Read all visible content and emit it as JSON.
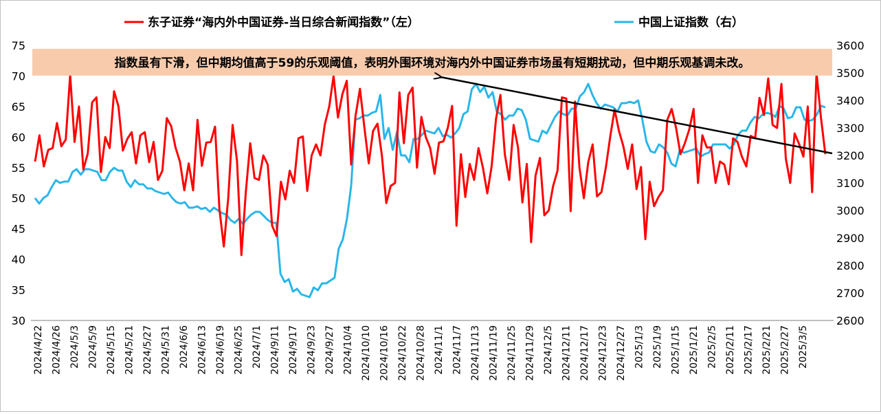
{
  "chart_data": {
    "type": "line",
    "annotation": "指数虽有下滑，但中期均值高于59的乐观阈值，表明外围环境对海内外中国证券市场虽有短期扰动，但中期乐观基调未改。",
    "legend": {
      "placement": "top"
    },
    "grid": false,
    "y_left": {
      "lim": [
        30,
        75
      ],
      "ticks": [
        30,
        35,
        40,
        45,
        50,
        55,
        60,
        65,
        70,
        75
      ]
    },
    "y_right": {
      "lim": [
        2600,
        3600
      ],
      "ticks": [
        2600,
        2700,
        2800,
        2900,
        3000,
        3100,
        3200,
        3300,
        3400,
        3500,
        3600
      ]
    },
    "x_tick_labels": [
      "2024/4/22",
      "2024/4/26",
      "2024/5/3",
      "2024/5/9",
      "2024/5/15",
      "2024/5/21",
      "2024/5/27",
      "2024/5/31",
      "2024/6/6",
      "2024/6/13",
      "2024/6/19",
      "2024/6/25",
      "2024/7/1",
      "2024/9/11",
      "2024/9/17",
      "2024/9/23",
      "2024/9/27",
      "2024/10/4",
      "2024/10/10",
      "2024/10/16",
      "2024/10/22",
      "2024/10/28",
      "2024/11/1",
      "2024/11/7",
      "2024/11/13",
      "2024/11/19",
      "2024/11/25",
      "2024/11/29",
      "2024/12/5",
      "2024/12/11",
      "2024/12/17",
      "2024/12/23",
      "2024/12/27",
      "2025/1/3",
      "2025/1/9",
      "2025/1/15",
      "2025/1/21",
      "2025/2/5",
      "2025/2/11",
      "2025/2/17",
      "2025/2/21",
      "2025/2/27",
      "2025/3/5"
    ],
    "series": [
      {
        "name": "东子证券“海内外中国证券-当日综合新闻指数”（左）",
        "axis": "left",
        "color": "#ff0000",
        "values": [
          56,
          60.3,
          55.2,
          57.9,
          58.2,
          62.3,
          58.5,
          59.6,
          70.2,
          59.2,
          65,
          54.7,
          57.3,
          65.7,
          66.5,
          54.3,
          60,
          58.2,
          67.5,
          65,
          57.8,
          59.7,
          60.8,
          55.7,
          60.3,
          60.8,
          55.9,
          59.2,
          53,
          54.5,
          63.1,
          61.8,
          58.3,
          56,
          51.3,
          55.7,
          51.3,
          62.8,
          55.3,
          59.1,
          59.2,
          61.7,
          48.2,
          42.1,
          50,
          62,
          56.1,
          40.7,
          51,
          59,
          53.3,
          53,
          57,
          55.5,
          45.5,
          43.8,
          52.7,
          49.8,
          54.5,
          52.5,
          59.8,
          60.1,
          51.2,
          57,
          58.8,
          57,
          62.1,
          65,
          70,
          63.2,
          67,
          69.2,
          55.5,
          63.5,
          67.9,
          61.6,
          55.7,
          61,
          62.2,
          57,
          49.2,
          52,
          52.5,
          67.3,
          59,
          66.9,
          68.1,
          55,
          63.3,
          60,
          58.2,
          54,
          59.1,
          59.3,
          61.5,
          65.1,
          45.5,
          57.2,
          50.2,
          55.6,
          53,
          58.2,
          55,
          50.8,
          55.2,
          63,
          66.9,
          57.2,
          53,
          62,
          58.3,
          49.3,
          55.6,
          42.8,
          53.7,
          56.6,
          47.2,
          48,
          52,
          54.5,
          66.5,
          66.3,
          47.9,
          65.8,
          55,
          50,
          55.9,
          58.8,
          50.3,
          51,
          55,
          60,
          64.5,
          61,
          58.5,
          54.8,
          58.8,
          51.5,
          55.1,
          43.3,
          52.7,
          48.7,
          50.2,
          51.3,
          62.8,
          64.6,
          61.5,
          57.2,
          59,
          61.2,
          64.6,
          52.5,
          60.3,
          58.3,
          58.3,
          52.5,
          56,
          55.5,
          52.3,
          59.8,
          59.2,
          56.8,
          55.2,
          60.2,
          59.8,
          66.4,
          63.6,
          69.6,
          62,
          61.5,
          68.7,
          56.5,
          52.5,
          60.6,
          58.9,
          56.8,
          65,
          51,
          70.5,
          63.2,
          57.2
        ]
      },
      {
        "name": "中国上证指数（右）",
        "axis": "right",
        "color": "#29b6e8",
        "values": [
          3045,
          3025,
          3045,
          3055,
          3085,
          3110,
          3100,
          3105,
          3105,
          3140,
          3150,
          3130,
          3150,
          3150,
          3145,
          3140,
          3110,
          3110,
          3140,
          3155,
          3145,
          3145,
          3105,
          3085,
          3110,
          3095,
          3095,
          3080,
          3080,
          3070,
          3065,
          3060,
          3065,
          3045,
          3030,
          3025,
          3030,
          3010,
          3010,
          3015,
          3005,
          3010,
          2995,
          3010,
          3000,
          2990,
          2985,
          2965,
          2955,
          2970,
          2950,
          2970,
          2985,
          2995,
          2995,
          2980,
          2965,
          2955,
          2955,
          2770,
          2740,
          2750,
          2705,
          2715,
          2695,
          2690,
          2685,
          2720,
          2710,
          2735,
          2735,
          2745,
          2755,
          2860,
          2895,
          2970,
          3090,
          3330,
          3335,
          3345,
          3345,
          3355,
          3360,
          3420,
          3260,
          3300,
          3220,
          3285,
          3200,
          3200,
          3175,
          3260,
          3260,
          3275,
          3290,
          3285,
          3280,
          3300,
          3270,
          3275,
          3265,
          3280,
          3300,
          3350,
          3360,
          3440,
          3460,
          3430,
          3450,
          3410,
          3430,
          3360,
          3350,
          3330,
          3345,
          3345,
          3370,
          3365,
          3330,
          3260,
          3255,
          3250,
          3290,
          3280,
          3310,
          3340,
          3360,
          3350,
          3345,
          3370,
          3370,
          3415,
          3430,
          3460,
          3420,
          3390,
          3370,
          3385,
          3380,
          3375,
          3360,
          3390,
          3390,
          3395,
          3390,
          3400,
          3330,
          3250,
          3215,
          3210,
          3240,
          3230,
          3210,
          3170,
          3160,
          3220,
          3210,
          3215,
          3220,
          3225,
          3195,
          3205,
          3210,
          3240,
          3240,
          3240,
          3240,
          3225,
          3240,
          3275,
          3290,
          3290,
          3320,
          3340,
          3335,
          3350,
          3355,
          3350,
          3340,
          3380,
          3370,
          3335,
          3340,
          3375,
          3375,
          3330,
          3325,
          3330,
          3350,
          3380,
          3375
        ]
      }
    ]
  }
}
